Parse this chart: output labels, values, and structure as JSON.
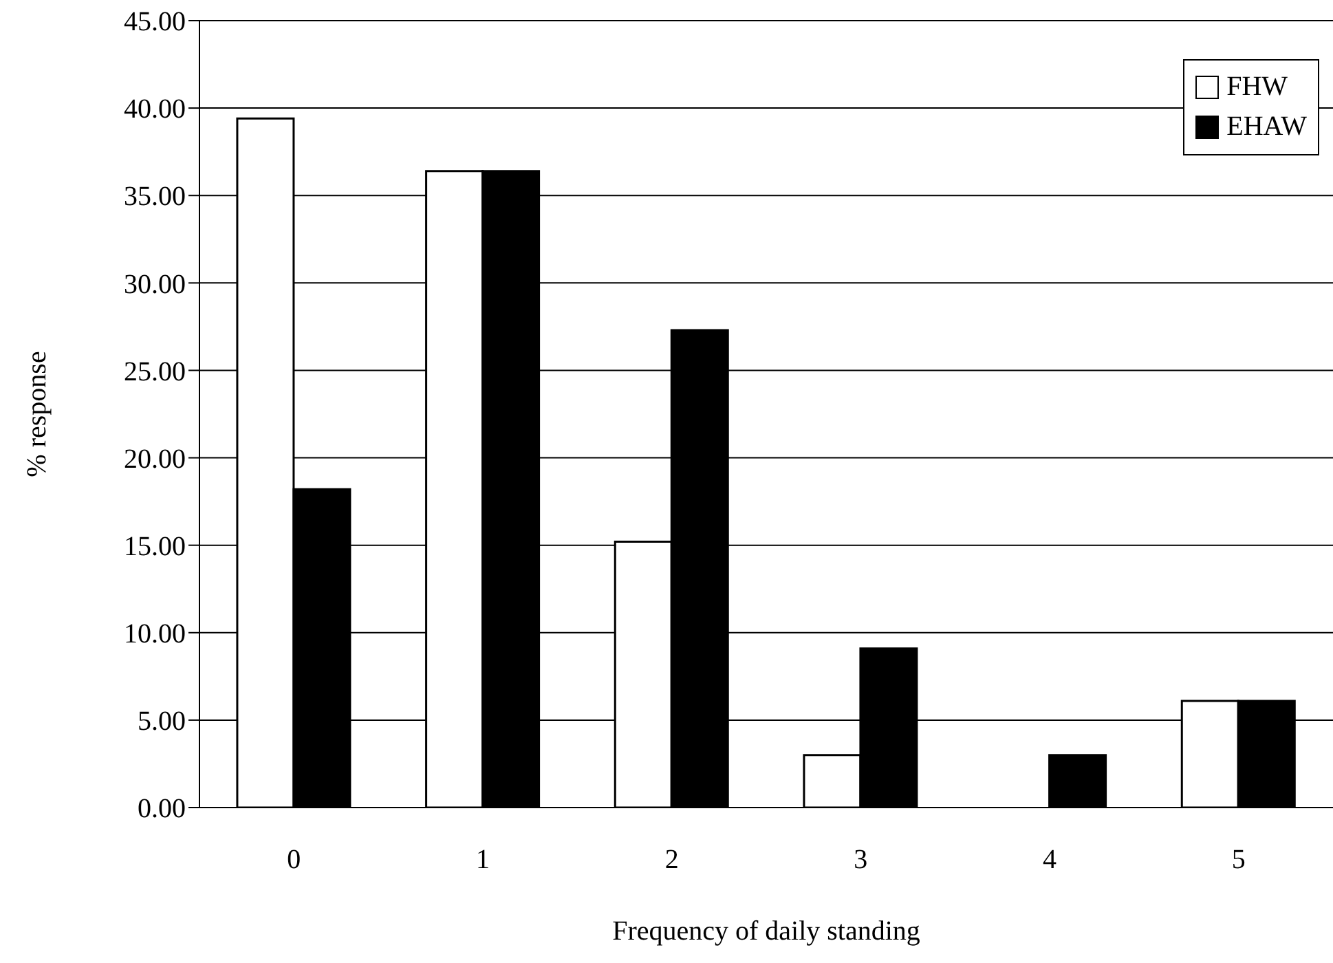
{
  "chart_data": {
    "type": "bar",
    "xlabel": "Frequency of daily standing",
    "ylabel": "% response",
    "categories": [
      "0",
      "1",
      "2",
      "3",
      "4",
      "5"
    ],
    "series": [
      {
        "name": "FHW",
        "color": "#ffffff",
        "values": [
          39.4,
          36.4,
          15.2,
          3.0,
          0,
          6.1
        ]
      },
      {
        "name": "EHAW",
        "color": "#000000",
        "values": [
          18.2,
          36.4,
          27.3,
          9.1,
          3.0,
          6.1
        ]
      }
    ],
    "ylim": [
      0,
      45
    ],
    "yticks": [
      {
        "value": 0,
        "label": "0.00"
      },
      {
        "value": 5,
        "label": "5.00"
      },
      {
        "value": 10,
        "label": "10.00"
      },
      {
        "value": 15,
        "label": "15.00"
      },
      {
        "value": 20,
        "label": "20.00"
      },
      {
        "value": 25,
        "label": "25.00"
      },
      {
        "value": 30,
        "label": "30.00"
      },
      {
        "value": 35,
        "label": "35.00"
      },
      {
        "value": 40,
        "label": "40.00"
      },
      {
        "value": 45,
        "label": "45.00"
      }
    ],
    "grid": "y",
    "legend": "top right"
  }
}
